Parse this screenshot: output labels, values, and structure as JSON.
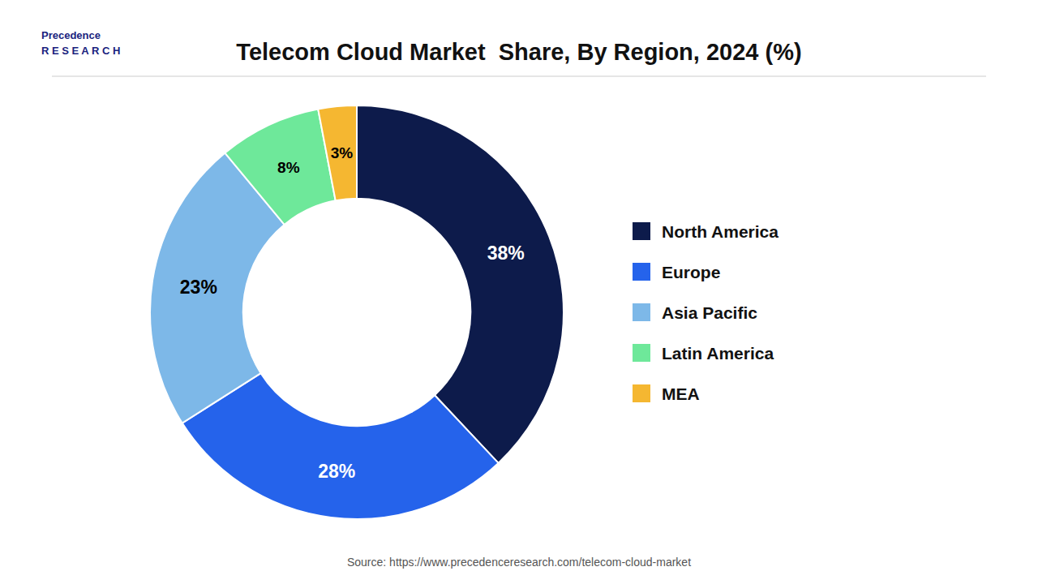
{
  "chart_data": {
    "type": "pie",
    "title": "Telecom Cloud Market  Share, By Region, 2024 (%)",
    "categories": [
      "North America",
      "Europe",
      "Asia Pacific",
      "Latin America",
      "MEA"
    ],
    "values": [
      38,
      28,
      23,
      8,
      3
    ],
    "value_labels": [
      "38%",
      "28%",
      "23%",
      "8%",
      "3%"
    ],
    "colors": [
      "#0d1b4b",
      "#2563eb",
      "#7db8e8",
      "#6ee89a",
      "#f5b731"
    ],
    "data_labels": true,
    "legend": "right",
    "annotations": [
      "Precedence",
      "R E S E A R C H",
      "Source: https://www.precedenceresearch.com/telecom-cloud-market"
    ]
  }
}
